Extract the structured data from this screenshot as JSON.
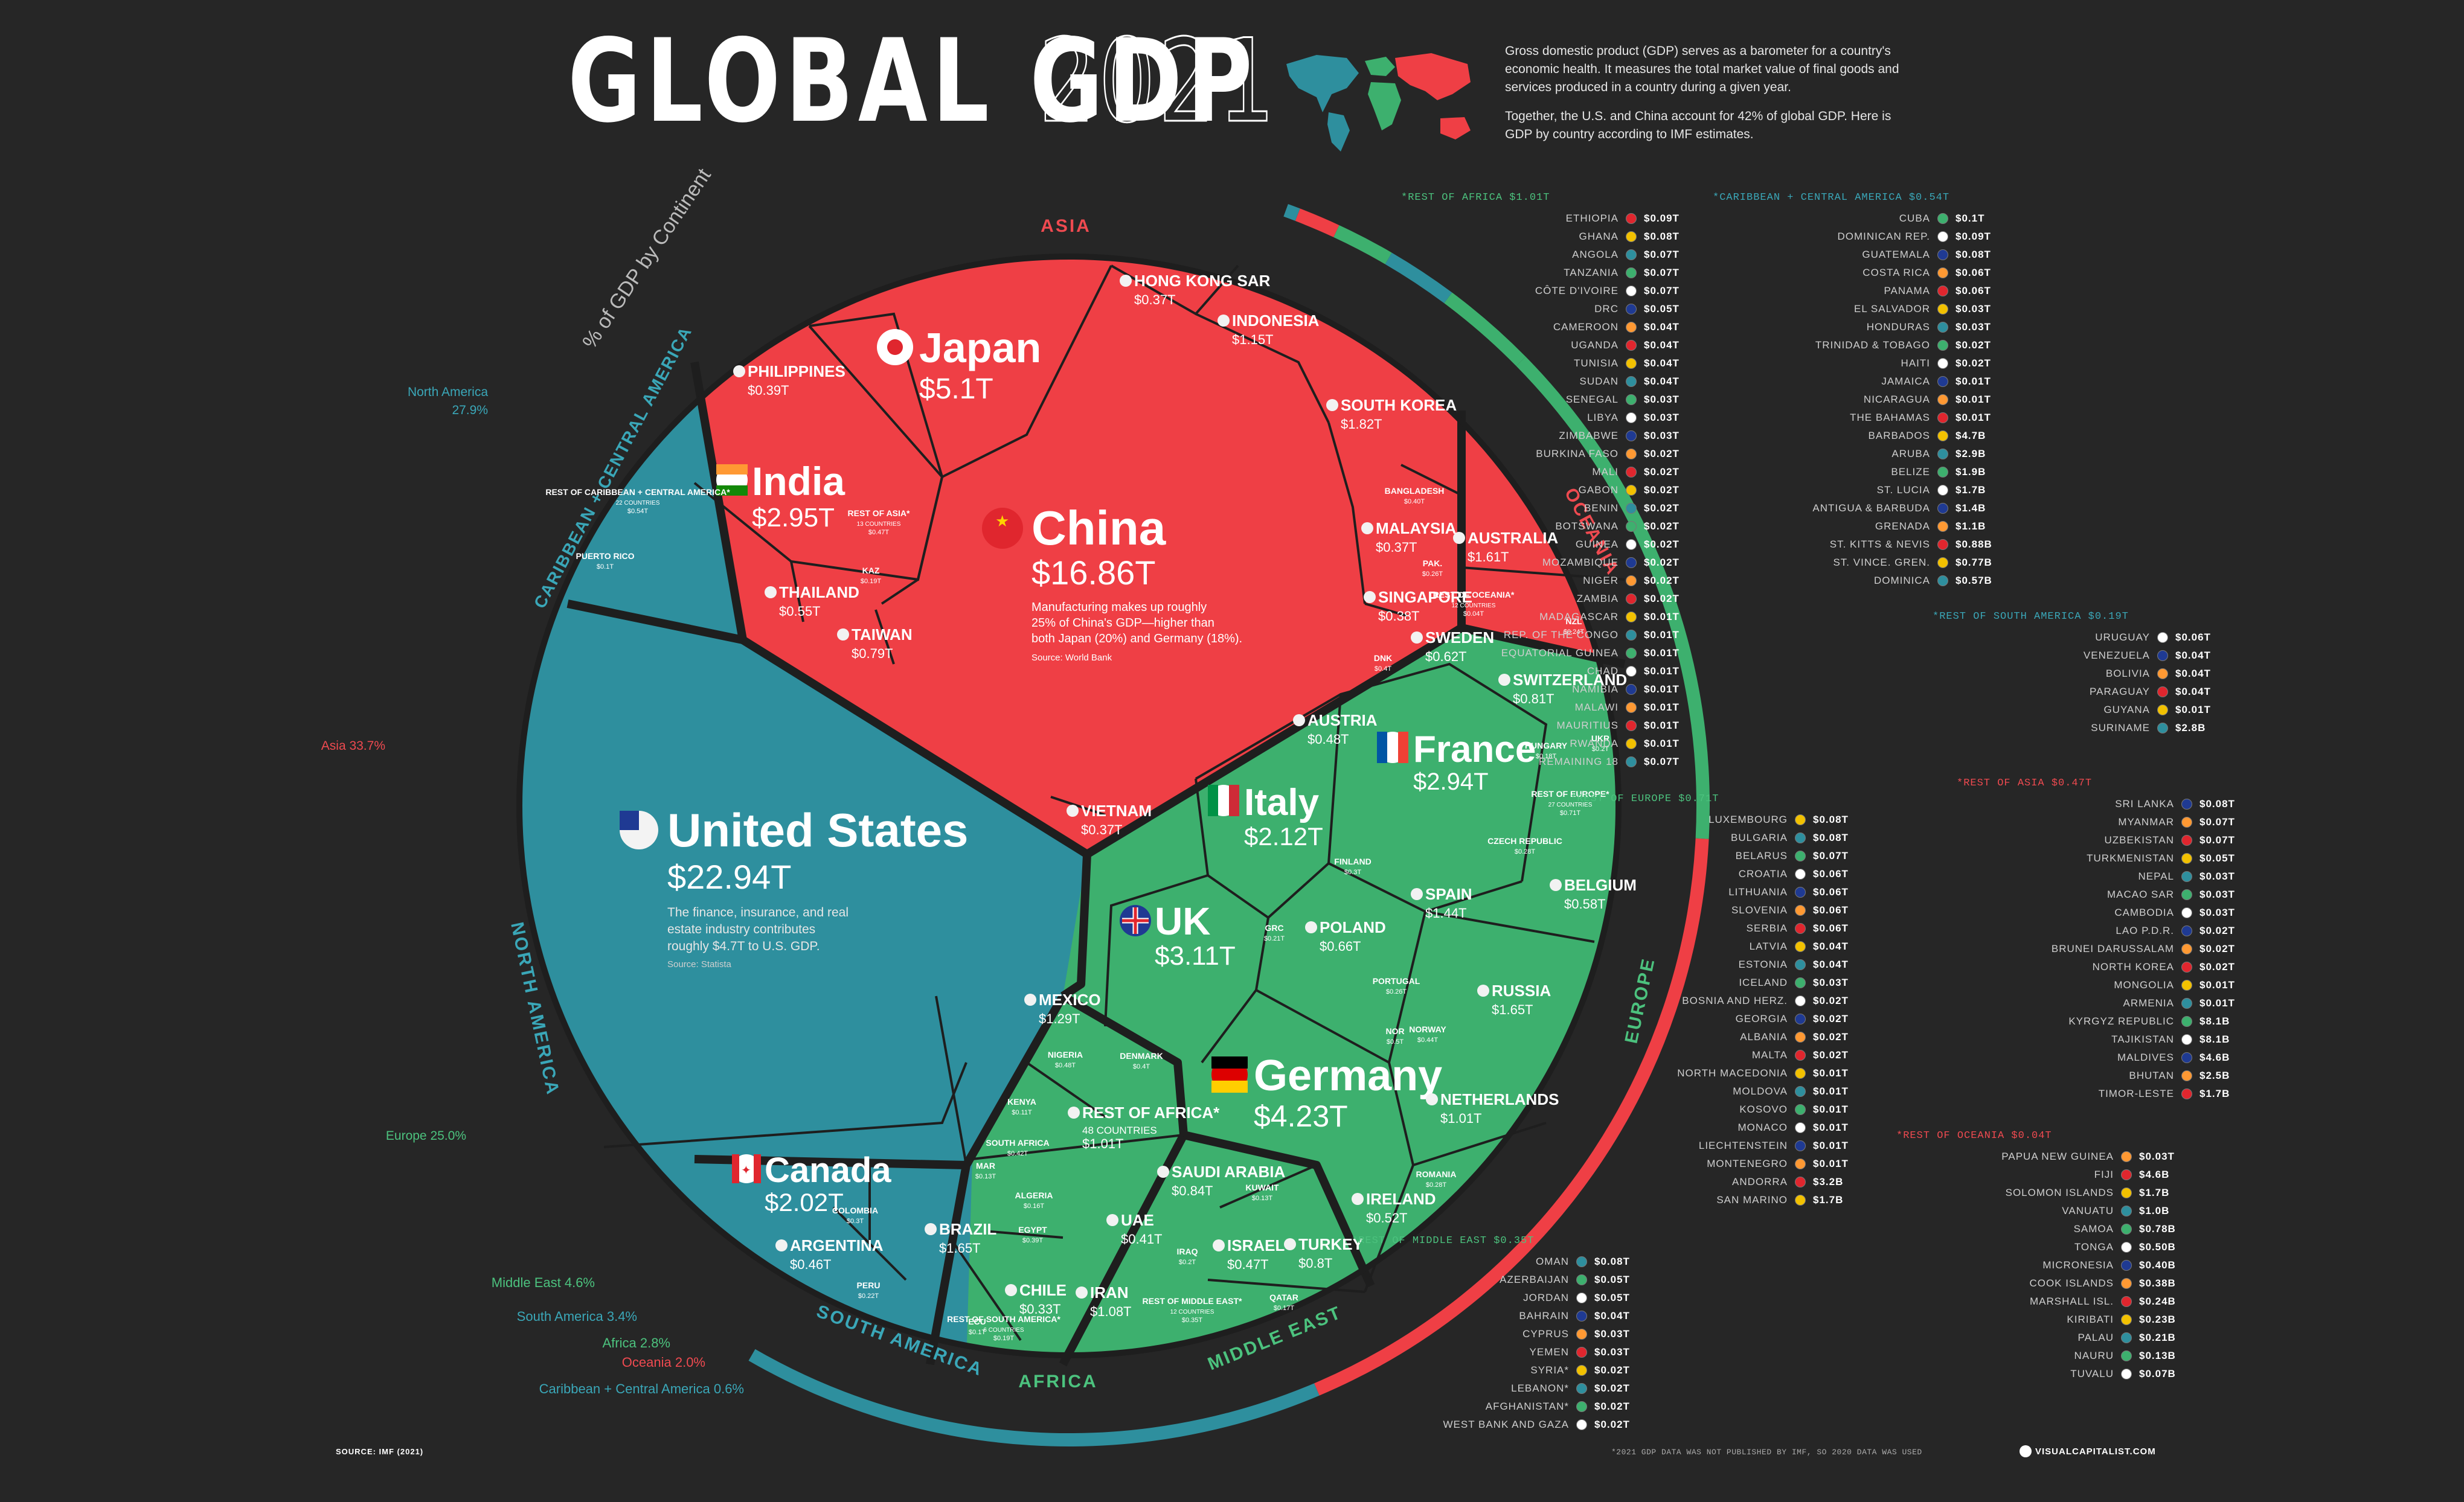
{
  "header": {
    "title": "GLOBAL GDP",
    "year": "2021",
    "intro_1": "Gross domestic product (GDP) serves as a barometer for a country's economic health. It measures the total market value of final goods and services produced in a country during a given year.",
    "intro_2": "Together, the U.S. and China account for 42% of global GDP. Here is GDP by country according to IMF estimates."
  },
  "colors": {
    "background": "#262626",
    "asia": "#ef3f45",
    "north_america": "#2e8f9e",
    "south_america": "#2e8f9e",
    "europe": "#3db06e",
    "africa": "#3db06e",
    "middle_east": "#3db06e",
    "oceania": "#ef3f45",
    "caribbean": "#2e8f9e",
    "border": "#1f1f1f"
  },
  "chart_data": {
    "type": "voronoi-treemap",
    "unit": "USD trillions",
    "continent_share": {
      "title": "% of GDP by Continent",
      "items": [
        {
          "name": "North America",
          "label": "North America",
          "pct": 27.9,
          "display": "27.9%",
          "color": "#2e8f9e"
        },
        {
          "name": "Asia",
          "label": "Asia 33.7%",
          "pct": 33.7,
          "color": "#ef3f45"
        },
        {
          "name": "Europe",
          "label": "Europe 25.0%",
          "pct": 25.0,
          "color": "#3db06e"
        },
        {
          "name": "Middle East",
          "label": "Middle East 4.6%",
          "pct": 4.6,
          "color": "#3db06e"
        },
        {
          "name": "South America",
          "label": "South America 3.4%",
          "pct": 3.4,
          "color": "#2e8f9e"
        },
        {
          "name": "Africa",
          "label": "Africa 2.8%",
          "pct": 2.8,
          "color": "#3db06e"
        },
        {
          "name": "Oceania",
          "label": "Oceania 2.0%",
          "pct": 2.0,
          "color": "#ef3f45"
        },
        {
          "name": "Caribbean + Central America",
          "label": "Caribbean + Central America 0.6%",
          "pct": 0.6,
          "color": "#2e8f9e"
        }
      ]
    },
    "region_labels": {
      "asia": "ASIA",
      "oceania": "OCEANIA",
      "europe": "EUROPE",
      "middle_east": "MIDDLE EAST",
      "africa": "AFRICA",
      "south_america": "SOUTH AMERICA",
      "north_america": "NORTH AMERICA",
      "caribbean": "CARIBBEAN + CENTRAL AMERICA"
    },
    "countries_large": [
      {
        "name": "United States",
        "value": "$22.94T",
        "gdp": 22.94
      },
      {
        "name": "China",
        "value": "$16.86T",
        "gdp": 16.86
      },
      {
        "name": "Japan",
        "value": "$5.1T",
        "gdp": 5.1
      },
      {
        "name": "Germany",
        "value": "$4.23T",
        "gdp": 4.23
      },
      {
        "name": "UK",
        "value": "$3.11T",
        "gdp": 3.11
      },
      {
        "name": "India",
        "value": "$2.95T",
        "gdp": 2.95
      },
      {
        "name": "France",
        "value": "$2.94T",
        "gdp": 2.94
      },
      {
        "name": "Italy",
        "value": "$2.12T",
        "gdp": 2.12
      },
      {
        "name": "Canada",
        "value": "$2.02T",
        "gdp": 2.02
      }
    ],
    "countries_medium": [
      {
        "name": "SOUTH KOREA",
        "value": "$1.82T"
      },
      {
        "name": "RUSSIA",
        "value": "$1.65T"
      },
      {
        "name": "BRAZIL",
        "value": "$1.65T"
      },
      {
        "name": "AUSTRALIA",
        "value": "$1.61T"
      },
      {
        "name": "SPAIN",
        "value": "$1.44T"
      },
      {
        "name": "INDONESIA",
        "value": "$1.15T"
      },
      {
        "name": "IRAN",
        "value": "$1.08T"
      },
      {
        "name": "SAUDI ARABIA",
        "value": "$0.84T"
      },
      {
        "name": "TURKEY",
        "value": "$0.8T"
      },
      {
        "name": "TAIWAN",
        "value": "$0.79T"
      },
      {
        "name": "POLAND",
        "value": "$0.66T"
      },
      {
        "name": "MEXICO",
        "value": "$1.29T"
      },
      {
        "name": "NETHERLANDS",
        "value": "$1.01T"
      },
      {
        "name": "SWITZERLAND",
        "value": "$0.81T"
      },
      {
        "name": "SWEDEN",
        "value": "$0.62T"
      },
      {
        "name": "BELGIUM",
        "value": "$0.58T"
      },
      {
        "name": "IRELAND",
        "value": "$0.52T"
      },
      {
        "name": "AUSTRIA",
        "value": "$0.48T"
      },
      {
        "name": "THAILAND",
        "value": "$0.55T"
      },
      {
        "name": "MALAYSIA",
        "value": "$0.37T"
      },
      {
        "name": "SINGAPORE",
        "value": "$0.38T"
      },
      {
        "name": "PHILIPPINES",
        "value": "$0.39T"
      },
      {
        "name": "HONG KONG SAR",
        "value": "$0.37T"
      },
      {
        "name": "VIETNAM",
        "value": "$0.37T"
      },
      {
        "name": "UAE",
        "value": "$0.41T"
      },
      {
        "name": "ISRAEL",
        "value": "$0.47T"
      },
      {
        "name": "ARGENTINA",
        "value": "$0.46T"
      },
      {
        "name": "CHILE",
        "value": "$0.33T"
      },
      {
        "name": "REST OF AFRICA*",
        "sub": "48 COUNTRIES",
        "value": "$1.01T"
      }
    ],
    "countries_small": [
      {
        "name": "BANGLADESH",
        "value": "$0.40T"
      },
      {
        "name": "PAK.",
        "value": "$0.26T"
      },
      {
        "name": "KAZ",
        "value": "$0.19T"
      },
      {
        "name": "REST OF ASIA*",
        "sub": "13 COUNTRIES",
        "value": "$0.47T"
      },
      {
        "name": "REST OF OCEANIA*",
        "sub": "12 COUNTRIES",
        "value": "$0.04T"
      },
      {
        "name": "NZL",
        "value": "$0.24T"
      },
      {
        "name": "DNK",
        "value": "$0.4T"
      },
      {
        "name": "NOR",
        "value": "$0.5T"
      },
      {
        "name": "UKR",
        "value": "$0.2T"
      },
      {
        "name": "HUNGARY",
        "value": "$0.18T"
      },
      {
        "name": "CZECH REPUBLIC",
        "value": "$0.28T"
      },
      {
        "name": "REST OF EUROPE*",
        "sub": "27 COUNTRIES",
        "value": "$0.71T"
      },
      {
        "name": "FINLAND",
        "value": "$0.3T"
      },
      {
        "name": "GRC",
        "value": "$0.21T"
      },
      {
        "name": "PORTUGAL",
        "value": "$0.26T"
      },
      {
        "name": "NORWAY",
        "value": "$0.44T"
      },
      {
        "name": "ROMANIA",
        "value": "$0.28T"
      },
      {
        "name": "DENMARK",
        "value": "$0.4T"
      },
      {
        "name": "NIGERIA",
        "value": "$0.48T"
      },
      {
        "name": "KENYA",
        "value": "$0.11T"
      },
      {
        "name": "SOUTH AFRICA",
        "value": "$0.42T"
      },
      {
        "name": "ALGERIA",
        "value": "$0.16T"
      },
      {
        "name": "EGYPT",
        "value": "$0.39T"
      },
      {
        "name": "MAR",
        "value": "$0.13T"
      },
      {
        "name": "KUWAIT",
        "value": "$0.13T"
      },
      {
        "name": "IRAQ",
        "value": "$0.2T"
      },
      {
        "name": "QATAR",
        "value": "$0.17T"
      },
      {
        "name": "REST OF MIDDLE EAST*",
        "sub": "12 COUNTRIES",
        "value": "$0.35T"
      },
      {
        "name": "COLOMBIA",
        "value": "$0.3T"
      },
      {
        "name": "PERU",
        "value": "$0.22T"
      },
      {
        "name": "ECU",
        "value": "$0.1T"
      },
      {
        "name": "REST OF SOUTH AMERICA*",
        "sub": "6 COUNTRIES",
        "value": "$0.19T"
      },
      {
        "name": "PUERTO RICO",
        "value": "$0.1T"
      },
      {
        "name": "REST OF CARIBBEAN + CENTRAL AMERICA*",
        "sub": "22 COUNTRIES",
        "value": "$0.54T"
      }
    ],
    "callouts": {
      "china": "Manufacturing makes up roughly 25% of China's GDP—higher than both Japan (20%) and Germany (18%).",
      "china_source": "Source: World Bank",
      "us": "The finance, insurance, and real estate industry contributes roughly $4.7T to U.S. GDP.",
      "us_source": "Source: Statista"
    }
  },
  "lists": [
    {
      "title": "*REST OF AFRICA $1.01T",
      "color": "#4cc27e",
      "rows": [
        {
          "name": "ETHIOPIA",
          "value": "$0.09T"
        },
        {
          "name": "GHANA",
          "value": "$0.08T"
        },
        {
          "name": "ANGOLA",
          "value": "$0.07T"
        },
        {
          "name": "TANZANIA",
          "value": "$0.07T"
        },
        {
          "name": "CÔTE D'IVOIRE",
          "value": "$0.07T"
        },
        {
          "name": "DRC",
          "value": "$0.05T"
        },
        {
          "name": "CAMEROON",
          "value": "$0.04T"
        },
        {
          "name": "UGANDA",
          "value": "$0.04T"
        },
        {
          "name": "TUNISIA",
          "value": "$0.04T"
        },
        {
          "name": "SUDAN",
          "value": "$0.04T"
        },
        {
          "name": "SENEGAL",
          "value": "$0.03T"
        },
        {
          "name": "LIBYA",
          "value": "$0.03T"
        },
        {
          "name": "ZIMBABWE",
          "value": "$0.03T"
        },
        {
          "name": "BURKINA FASO",
          "value": "$0.02T"
        },
        {
          "name": "MALI",
          "value": "$0.02T"
        },
        {
          "name": "GABON",
          "value": "$0.02T"
        },
        {
          "name": "BENIN",
          "value": "$0.02T"
        },
        {
          "name": "BOTSWANA",
          "value": "$0.02T"
        },
        {
          "name": "GUINEA",
          "value": "$0.02T"
        },
        {
          "name": "MOZAMBIQUE",
          "value": "$0.02T"
        },
        {
          "name": "NIGER",
          "value": "$0.02T"
        },
        {
          "name": "ZAMBIA",
          "value": "$0.02T"
        },
        {
          "name": "MADAGASCAR",
          "value": "$0.01T"
        },
        {
          "name": "REP. OF THE CONGO",
          "value": "$0.01T"
        },
        {
          "name": "EQUATORIAL GUINEA",
          "value": "$0.01T"
        },
        {
          "name": "CHAD",
          "value": "$0.01T"
        },
        {
          "name": "NAMIBIA",
          "value": "$0.01T"
        },
        {
          "name": "MALAWI",
          "value": "$0.01T"
        },
        {
          "name": "MAURITIUS",
          "value": "$0.01T"
        },
        {
          "name": "RWANDA",
          "value": "$0.01T"
        },
        {
          "name": "REMAINING 18",
          "value": "$0.07T"
        }
      ]
    },
    {
      "title": "*REST OF EUROPE $0.71T",
      "color": "#4cc27e",
      "rows": [
        {
          "name": "LUXEMBOURG",
          "value": "$0.08T"
        },
        {
          "name": "BULGARIA",
          "value": "$0.08T"
        },
        {
          "name": "BELARUS",
          "value": "$0.07T"
        },
        {
          "name": "CROATIA",
          "value": "$0.06T"
        },
        {
          "name": "LITHUANIA",
          "value": "$0.06T"
        },
        {
          "name": "SLOVENIA",
          "value": "$0.06T"
        },
        {
          "name": "SERBIA",
          "value": "$0.06T"
        },
        {
          "name": "LATVIA",
          "value": "$0.04T"
        },
        {
          "name": "ESTONIA",
          "value": "$0.04T"
        },
        {
          "name": "ICELAND",
          "value": "$0.03T"
        },
        {
          "name": "BOSNIA AND HERZ.",
          "value": "$0.02T"
        },
        {
          "name": "GEORGIA",
          "value": "$0.02T"
        },
        {
          "name": "ALBANIA",
          "value": "$0.02T"
        },
        {
          "name": "MALTA",
          "value": "$0.02T"
        },
        {
          "name": "NORTH MACEDONIA",
          "value": "$0.01T"
        },
        {
          "name": "MOLDOVA",
          "value": "$0.01T"
        },
        {
          "name": "KOSOVO",
          "value": "$0.01T"
        },
        {
          "name": "MONACO",
          "value": "$0.01T"
        },
        {
          "name": "LIECHTENSTEIN",
          "value": "$0.01T"
        },
        {
          "name": "MONTENEGRO",
          "value": "$0.01T"
        },
        {
          "name": "ANDORRA",
          "value": "$3.2B"
        },
        {
          "name": "SAN MARINO",
          "value": "$1.7B"
        }
      ]
    },
    {
      "title": "*REST OF MIDDLE EAST $0.35T",
      "color": "#4cc27e",
      "rows": [
        {
          "name": "OMAN",
          "value": "$0.08T"
        },
        {
          "name": "AZERBAIJAN",
          "value": "$0.05T"
        },
        {
          "name": "JORDAN",
          "value": "$0.05T"
        },
        {
          "name": "BAHRAIN",
          "value": "$0.04T"
        },
        {
          "name": "CYPRUS",
          "value": "$0.03T"
        },
        {
          "name": "YEMEN",
          "value": "$0.03T"
        },
        {
          "name": "SYRIA*",
          "value": "$0.02T"
        },
        {
          "name": "LEBANON*",
          "value": "$0.02T"
        },
        {
          "name": "AFGHANISTAN*",
          "value": "$0.02T"
        },
        {
          "name": "WEST BANK AND GAZA",
          "value": "$0.02T"
        }
      ]
    },
    {
      "title": "*CARIBBEAN + CENTRAL AMERICA $0.54T",
      "color": "#3aa7b8",
      "rows": [
        {
          "name": "CUBA",
          "value": "$0.1T"
        },
        {
          "name": "DOMINICAN REP.",
          "value": "$0.09T"
        },
        {
          "name": "GUATEMALA",
          "value": "$0.08T"
        },
        {
          "name": "COSTA RICA",
          "value": "$0.06T"
        },
        {
          "name": "PANAMA",
          "value": "$0.06T"
        },
        {
          "name": "EL SALVADOR",
          "value": "$0.03T"
        },
        {
          "name": "HONDURAS",
          "value": "$0.03T"
        },
        {
          "name": "TRINIDAD & TOBAGO",
          "value": "$0.02T"
        },
        {
          "name": "HAITI",
          "value": "$0.02T"
        },
        {
          "name": "JAMAICA",
          "value": "$0.01T"
        },
        {
          "name": "NICARAGUA",
          "value": "$0.01T"
        },
        {
          "name": "THE BAHAMAS",
          "value": "$0.01T"
        },
        {
          "name": "BARBADOS",
          "value": "$4.7B"
        },
        {
          "name": "ARUBA",
          "value": "$2.9B"
        },
        {
          "name": "BELIZE",
          "value": "$1.9B"
        },
        {
          "name": "ST. LUCIA",
          "value": "$1.7B"
        },
        {
          "name": "ANTIGUA & BARBUDA",
          "value": "$1.4B"
        },
        {
          "name": "GRENADA",
          "value": "$1.1B"
        },
        {
          "name": "ST. KITTS & NEVIS",
          "value": "$0.88B"
        },
        {
          "name": "ST. VINCE. GREN.",
          "value": "$0.77B"
        },
        {
          "name": "DOMINICA",
          "value": "$0.57B"
        }
      ]
    },
    {
      "title": "*REST OF SOUTH AMERICA $0.19T",
      "color": "#3aa7b8",
      "rows": [
        {
          "name": "URUGUAY",
          "value": "$0.06T"
        },
        {
          "name": "VENEZUELA",
          "value": "$0.04T"
        },
        {
          "name": "BOLIVIA",
          "value": "$0.04T"
        },
        {
          "name": "PARAGUAY",
          "value": "$0.04T"
        },
        {
          "name": "GUYANA",
          "value": "$0.01T"
        },
        {
          "name": "SURINAME",
          "value": "$2.8B"
        }
      ]
    },
    {
      "title": "*REST OF ASIA $0.47T",
      "color": "#ef4a50",
      "rows": [
        {
          "name": "SRI LANKA",
          "value": "$0.08T"
        },
        {
          "name": "MYANMAR",
          "value": "$0.07T"
        },
        {
          "name": "UZBEKISTAN",
          "value": "$0.07T"
        },
        {
          "name": "TURKMENISTAN",
          "value": "$0.05T"
        },
        {
          "name": "NEPAL",
          "value": "$0.03T"
        },
        {
          "name": "MACAO SAR",
          "value": "$0.03T"
        },
        {
          "name": "CAMBODIA",
          "value": "$0.03T"
        },
        {
          "name": "LAO P.D.R.",
          "value": "$0.02T"
        },
        {
          "name": "BRUNEI DARUSSALAM",
          "value": "$0.02T"
        },
        {
          "name": "NORTH KOREA",
          "value": "$0.02T"
        },
        {
          "name": "MONGOLIA",
          "value": "$0.01T"
        },
        {
          "name": "ARMENIA",
          "value": "$0.01T"
        },
        {
          "name": "KYRGYZ REPUBLIC",
          "value": "$8.1B"
        },
        {
          "name": "TAJIKISTAN",
          "value": "$8.1B"
        },
        {
          "name": "MALDIVES",
          "value": "$4.6B"
        },
        {
          "name": "BHUTAN",
          "value": "$2.5B"
        },
        {
          "name": "TIMOR-LESTE",
          "value": "$1.7B"
        }
      ]
    },
    {
      "title": "*REST OF OCEANIA $0.04T",
      "color": "#ef4a50",
      "rows": [
        {
          "name": "PAPUA NEW GUINEA",
          "value": "$0.03T"
        },
        {
          "name": "FIJI",
          "value": "$4.6B"
        },
        {
          "name": "SOLOMON ISLANDS",
          "value": "$1.7B"
        },
        {
          "name": "VANUATU",
          "value": "$1.0B"
        },
        {
          "name": "SAMOA",
          "value": "$0.78B"
        },
        {
          "name": "TONGA",
          "value": "$0.50B"
        },
        {
          "name": "MICRONESIA",
          "value": "$0.40B"
        },
        {
          "name": "COOK ISLANDS",
          "value": "$0.38B"
        },
        {
          "name": "MARSHALL ISL.",
          "value": "$0.24B"
        },
        {
          "name": "KIRIBATI",
          "value": "$0.23B"
        },
        {
          "name": "PALAU",
          "value": "$0.21B"
        },
        {
          "name": "NAURU",
          "value": "$0.13B"
        },
        {
          "name": "TUVALU",
          "value": "$0.07B"
        }
      ]
    }
  ],
  "footer": {
    "source": "SOURCE: IMF (2021)",
    "footnote": "*2021 GDP DATA WAS NOT PUBLISHED BY IMF, SO 2020 DATA WAS USED",
    "brand": "VISUALCAPITALIST.COM"
  }
}
